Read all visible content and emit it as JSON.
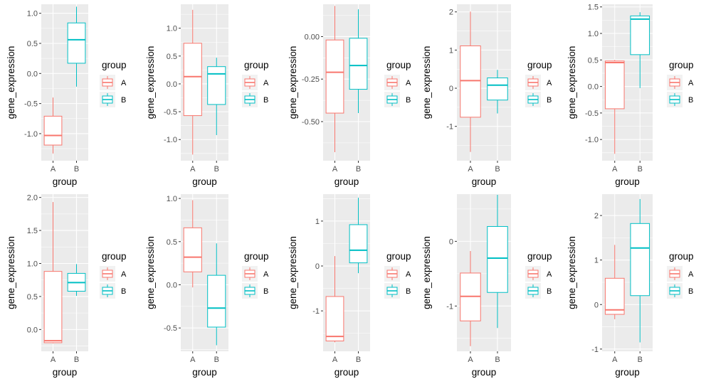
{
  "colors": {
    "A": "#F8766D",
    "B": "#00BFC4",
    "panel": "#EBEBEB",
    "grid": "#FFFFFF"
  },
  "chart_data": [
    {
      "type": "box",
      "xlabel": "group",
      "ylabel": "gene_expression",
      "categories": [
        "A",
        "B"
      ],
      "ylim": [
        -1.45,
        1.15
      ],
      "yticks": [
        -1.0,
        -0.5,
        0.0,
        0.5,
        1.0
      ],
      "ytick_labels": [
        "-1.0",
        "-0.5",
        "0.0",
        "0.5",
        "1.0"
      ],
      "boxes": [
        {
          "group": "A",
          "min": -1.33,
          "q1": -1.19,
          "median": -1.03,
          "q3": -0.71,
          "max": -0.4
        },
        {
          "group": "B",
          "min": -0.22,
          "q1": 0.17,
          "median": 0.56,
          "q3": 0.84,
          "max": 1.11
        }
      ],
      "legend": {
        "title": "group",
        "entries": [
          "A",
          "B"
        ],
        "position": "right"
      }
    },
    {
      "type": "box",
      "xlabel": "group",
      "ylabel": "gene_expression",
      "categories": [
        "A",
        "B"
      ],
      "ylim": [
        -1.38,
        1.43
      ],
      "yticks": [
        -1.0,
        -0.5,
        0.0,
        0.5,
        1.0
      ],
      "ytick_labels": [
        "-1.0",
        "-0.5",
        "0.0",
        "0.5",
        "1.0"
      ],
      "boxes": [
        {
          "group": "A",
          "min": -1.27,
          "q1": -0.57,
          "median": 0.13,
          "q3": 0.73,
          "max": 1.33
        },
        {
          "group": "B",
          "min": -0.92,
          "q1": -0.37,
          "median": 0.18,
          "q3": 0.31,
          "max": 0.47
        }
      ],
      "legend": {
        "title": "group",
        "entries": [
          "A",
          "B"
        ],
        "position": "right"
      }
    },
    {
      "type": "box",
      "xlabel": "group",
      "ylabel": "gene_expression",
      "categories": [
        "A",
        "B"
      ],
      "ylim": [
        -0.73,
        0.19
      ],
      "yticks": [
        -0.5,
        -0.25,
        0.0
      ],
      "ytick_labels": [
        "-0.50",
        "-0.25",
        "0.00"
      ],
      "boxes": [
        {
          "group": "A",
          "min": -0.68,
          "q1": -0.45,
          "median": -0.21,
          "q3": -0.02,
          "max": 0.18
        },
        {
          "group": "B",
          "min": -0.45,
          "q1": -0.31,
          "median": -0.17,
          "q3": -0.01,
          "max": 0.16
        }
      ],
      "legend": {
        "title": "group",
        "entries": [
          "A",
          "B"
        ],
        "position": "right"
      }
    },
    {
      "type": "box",
      "xlabel": "group",
      "ylabel": "gene_expression",
      "categories": [
        "A",
        "B"
      ],
      "ylim": [
        -1.9,
        2.2
      ],
      "yticks": [
        -1,
        0,
        1,
        2
      ],
      "ytick_labels": [
        "-1",
        "0",
        "1",
        "2"
      ],
      "boxes": [
        {
          "group": "A",
          "min": -1.67,
          "q1": -0.76,
          "median": 0.2,
          "q3": 1.11,
          "max": 2.01
        },
        {
          "group": "B",
          "min": -0.66,
          "q1": -0.31,
          "median": 0.08,
          "q3": 0.27,
          "max": 0.48
        }
      ],
      "legend": {
        "title": "group",
        "entries": [
          "A",
          "B"
        ],
        "position": "right"
      }
    },
    {
      "type": "box",
      "xlabel": "group",
      "ylabel": "gene_expression",
      "categories": [
        "A",
        "B"
      ],
      "ylim": [
        -1.4,
        1.55
      ],
      "yticks": [
        -1.0,
        -0.5,
        0.0,
        0.5,
        1.0,
        1.5
      ],
      "ytick_labels": [
        "-1.0",
        "-0.5",
        "0.0",
        "0.5",
        "1.0",
        "1.5"
      ],
      "boxes": [
        {
          "group": "A",
          "min": -1.27,
          "q1": -0.42,
          "median": 0.45,
          "q3": 0.48,
          "max": 0.5
        },
        {
          "group": "B",
          "min": -0.03,
          "q1": 0.6,
          "median": 1.27,
          "q3": 1.33,
          "max": 1.4
        }
      ],
      "legend": {
        "title": "group",
        "entries": [
          "A",
          "B"
        ],
        "position": "right"
      }
    },
    {
      "type": "box",
      "xlabel": "group",
      "ylabel": "gene_expression",
      "categories": [
        "A",
        "B"
      ],
      "ylim": [
        -0.33,
        2.05
      ],
      "yticks": [
        0.0,
        0.5,
        1.0,
        1.5,
        2.0
      ],
      "ytick_labels": [
        "0.0",
        "0.5",
        "1.0",
        "1.5",
        "2.0"
      ],
      "boxes": [
        {
          "group": "A",
          "min": -0.21,
          "q1": -0.2,
          "median": -0.17,
          "q3": 0.88,
          "max": 1.93
        },
        {
          "group": "B",
          "min": 0.51,
          "q1": 0.58,
          "median": 0.71,
          "q3": 0.85,
          "max": 0.99
        }
      ],
      "legend": {
        "title": "group",
        "entries": [
          "A",
          "B"
        ],
        "position": "right"
      }
    },
    {
      "type": "box",
      "xlabel": "group",
      "ylabel": "gene_expression",
      "categories": [
        "A",
        "B"
      ],
      "ylim": [
        -0.77,
        1.05
      ],
      "yticks": [
        -0.5,
        0.0,
        0.5,
        1.0
      ],
      "ytick_labels": [
        "-0.5",
        "0.0",
        "0.5",
        "1.0"
      ],
      "boxes": [
        {
          "group": "A",
          "min": -0.03,
          "q1": 0.15,
          "median": 0.32,
          "q3": 0.66,
          "max": 0.98
        },
        {
          "group": "B",
          "min": -0.7,
          "q1": -0.49,
          "median": -0.27,
          "q3": 0.11,
          "max": 0.48
        }
      ],
      "legend": {
        "title": "group",
        "entries": [
          "A",
          "B"
        ],
        "position": "right"
      }
    },
    {
      "type": "box",
      "xlabel": "group",
      "ylabel": "gene_expression",
      "categories": [
        "A",
        "B"
      ],
      "ylim": [
        -1.9,
        1.6
      ],
      "yticks": [
        -1,
        0,
        1
      ],
      "ytick_labels": [
        "-1",
        "0",
        "1"
      ],
      "boxes": [
        {
          "group": "A",
          "min": -1.7,
          "q1": -1.67,
          "median": -1.57,
          "q3": -0.68,
          "max": 0.22
        },
        {
          "group": "B",
          "min": -0.16,
          "q1": 0.07,
          "median": 0.35,
          "q3": 0.92,
          "max": 1.52
        }
      ],
      "legend": {
        "title": "group",
        "entries": [
          "A",
          "B"
        ],
        "position": "right"
      }
    },
    {
      "type": "box",
      "xlabel": "group",
      "ylabel": "gene_expression",
      "categories": [
        "A",
        "B"
      ],
      "ylim": [
        -1.7,
        0.73
      ],
      "yticks": [
        -1,
        0
      ],
      "ytick_labels": [
        "-1",
        "0"
      ],
      "boxes": [
        {
          "group": "A",
          "min": -1.62,
          "q1": -1.23,
          "median": -0.85,
          "q3": -0.49,
          "max": -0.15
        },
        {
          "group": "B",
          "min": -1.34,
          "q1": -0.79,
          "median": -0.26,
          "q3": 0.23,
          "max": 0.72
        }
      ],
      "legend": {
        "title": "group",
        "entries": [
          "A",
          "B"
        ],
        "position": "right"
      }
    },
    {
      "type": "box",
      "xlabel": "group",
      "ylabel": "gene_expression",
      "categories": [
        "A",
        "B"
      ],
      "ylim": [
        -1.05,
        2.48
      ],
      "yticks": [
        -1,
        0,
        1,
        2
      ],
      "ytick_labels": [
        "-1",
        "0",
        "1",
        "2"
      ],
      "boxes": [
        {
          "group": "A",
          "min": -0.33,
          "q1": -0.22,
          "median": -0.12,
          "q3": 0.59,
          "max": 1.34
        },
        {
          "group": "B",
          "min": -0.85,
          "q1": 0.2,
          "median": 1.27,
          "q3": 1.82,
          "max": 2.37
        }
      ],
      "legend": {
        "title": "group",
        "entries": [
          "A",
          "B"
        ],
        "position": "right"
      }
    }
  ]
}
